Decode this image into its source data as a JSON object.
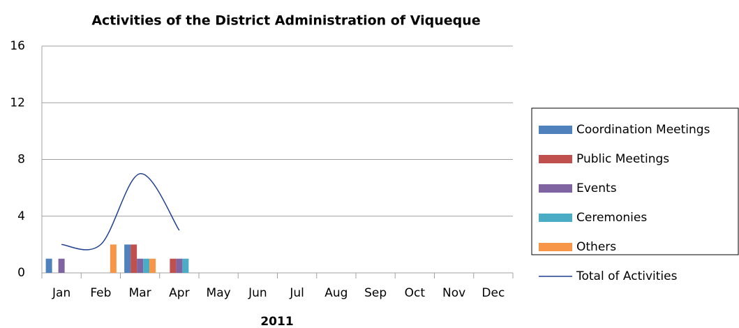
{
  "chart_data": {
    "type": "bar",
    "title": "Activities of the District Administration of Viqueque",
    "x_label": "2011",
    "categories": [
      "Jan",
      "Feb",
      "Mar",
      "Apr",
      "May",
      "Jun",
      "Jul",
      "Aug",
      "Sep",
      "Oct",
      "Nov",
      "Dec"
    ],
    "series": [
      {
        "name": "Coordination Meetings",
        "color": "#4f81bd",
        "values": [
          1,
          0,
          2,
          0,
          null,
          null,
          null,
          null,
          null,
          null,
          null,
          null
        ]
      },
      {
        "name": "Public Meetings",
        "color": "#c0504d",
        "values": [
          0,
          0,
          2,
          1,
          null,
          null,
          null,
          null,
          null,
          null,
          null,
          null
        ]
      },
      {
        "name": "Events",
        "color": "#8064a2",
        "values": [
          1,
          0,
          1,
          1,
          null,
          null,
          null,
          null,
          null,
          null,
          null,
          null
        ]
      },
      {
        "name": "Ceremonies",
        "color": "#4bacc6",
        "values": [
          0,
          0,
          1,
          1,
          null,
          null,
          null,
          null,
          null,
          null,
          null,
          null
        ]
      },
      {
        "name": "Others",
        "color": "#f79646",
        "values": [
          0,
          2,
          1,
          0,
          null,
          null,
          null,
          null,
          null,
          null,
          null,
          null
        ]
      },
      {
        "name": "Total of Activities",
        "type": "line",
        "color": "#1f3f8f",
        "values": [
          2,
          2,
          7,
          3,
          null,
          null,
          null,
          null,
          null,
          null,
          null,
          null
        ]
      }
    ],
    "ylim": [
      0,
      16
    ],
    "yticks": [
      0,
      4,
      8,
      12,
      16
    ],
    "grid": true,
    "legend": "right"
  }
}
